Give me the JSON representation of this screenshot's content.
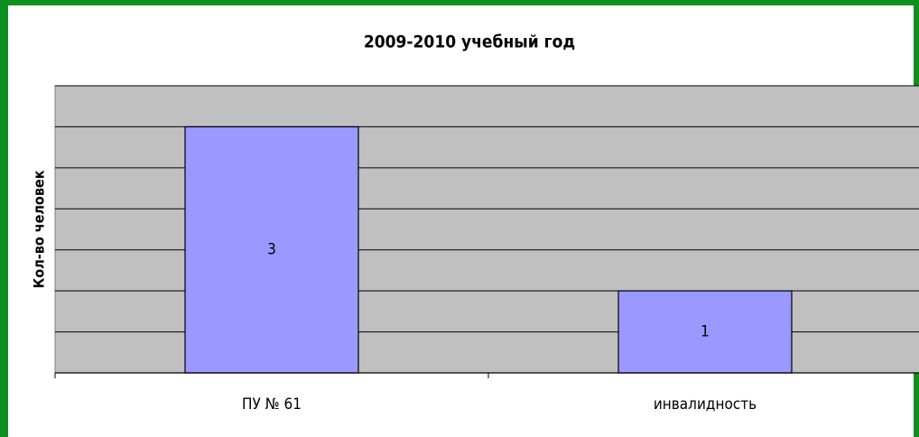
{
  "chart_data": {
    "type": "bar",
    "title": "2009-2010 учебный год",
    "y_label": "Кол-во человек",
    "categories": [
      "ПУ № 61",
      "инвалидность"
    ],
    "values": [
      3,
      1
    ],
    "color": "#9999ff",
    "ylim": [
      0,
      3.5
    ],
    "yticks": [
      0,
      0.5,
      1,
      1.5,
      2,
      2.5,
      3,
      3.5
    ],
    "grid": true,
    "ytick_labels": false
  }
}
